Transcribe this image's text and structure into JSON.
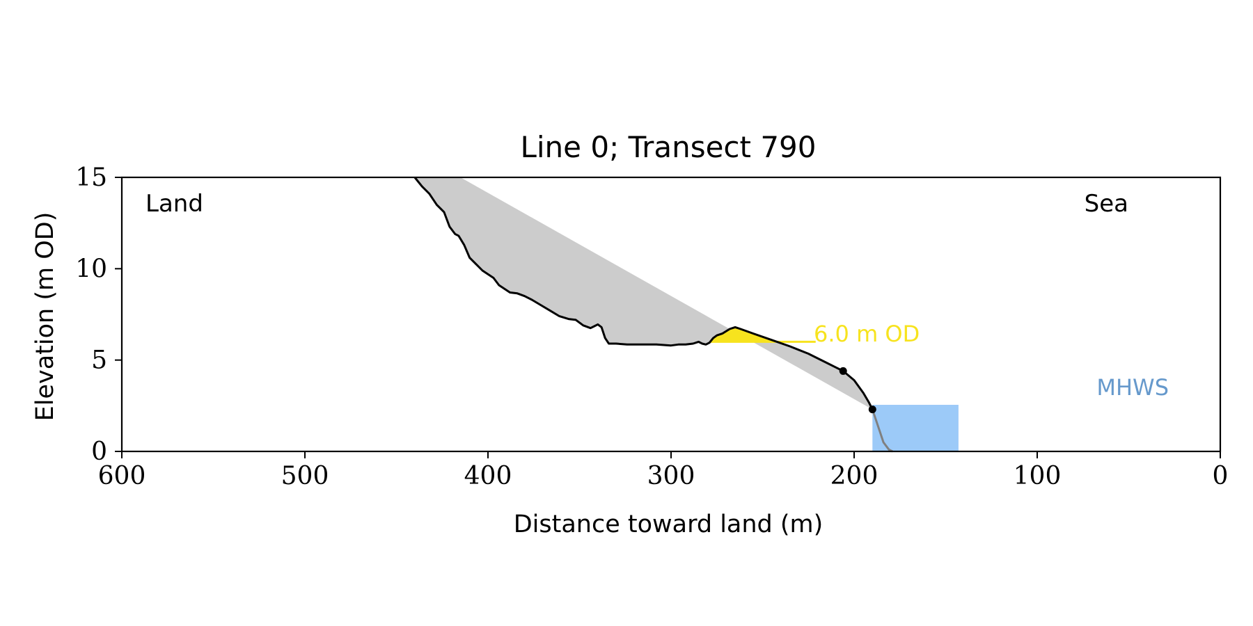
{
  "chart_data": {
    "type": "area",
    "title": "Line 0; Transect 790",
    "xlabel": "Distance toward land (m)",
    "ylabel": "Elevation (m OD)",
    "xlim": [
      600,
      0
    ],
    "ylim": [
      0,
      15
    ],
    "x_ticks": [
      600,
      500,
      400,
      300,
      200,
      100,
      0
    ],
    "y_ticks": [
      0,
      5,
      10,
      15
    ],
    "grid": false,
    "corner_labels": {
      "left": "Land",
      "right": "Sea"
    },
    "profile": {
      "x": [
        440,
        436,
        432,
        428,
        424,
        421,
        418,
        416,
        413,
        410,
        406,
        403,
        400,
        397,
        394,
        391,
        388,
        384,
        380,
        376,
        371,
        366,
        361,
        356,
        352,
        348,
        344,
        342,
        340,
        338,
        336,
        334,
        332,
        330,
        324,
        316,
        308,
        300,
        296,
        292,
        288,
        285,
        283,
        281,
        279,
        277,
        275,
        272,
        268,
        265,
        262,
        255,
        245,
        235,
        225,
        215,
        210,
        206,
        200,
        195,
        192,
        190
      ],
      "y": [
        15.0,
        14.5,
        14.1,
        13.5,
        13.1,
        12.3,
        11.9,
        11.8,
        11.3,
        10.6,
        10.2,
        9.9,
        9.7,
        9.5,
        9.1,
        8.9,
        8.7,
        8.65,
        8.5,
        8.3,
        8.0,
        7.7,
        7.4,
        7.25,
        7.2,
        6.9,
        6.75,
        6.85,
        6.95,
        6.8,
        6.2,
        5.9,
        5.9,
        5.9,
        5.85,
        5.85,
        5.85,
        5.8,
        5.85,
        5.85,
        5.9,
        6.0,
        5.9,
        5.85,
        5.95,
        6.2,
        6.35,
        6.45,
        6.7,
        6.8,
        6.7,
        6.45,
        6.1,
        5.75,
        5.35,
        4.85,
        4.6,
        4.4,
        3.9,
        3.2,
        2.7,
        2.3
      ]
    },
    "cliff_top": {
      "x": 206,
      "y": 4.4
    },
    "cliff_toe": {
      "x": 190,
      "y": 2.3
    },
    "foreshore": {
      "x": [
        190,
        187,
        184,
        181,
        179
      ],
      "y": [
        2.3,
        1.4,
        0.5,
        0.1,
        0.0
      ]
    },
    "projection_line": {
      "x": [
        415,
        190
      ],
      "y": [
        15.0,
        2.3
      ]
    },
    "mhws": {
      "label": "MHWS",
      "elevation": 2.55,
      "x_range": [
        143,
        190
      ],
      "color": "#9ccaf8",
      "label_color": "#6699cc"
    },
    "od_level": {
      "label": "6.0 m OD",
      "elevation": 6.0,
      "x_range": [
        221,
        279
      ],
      "color": "#f7e31e"
    },
    "colors": {
      "area": "#cccccc",
      "profile": "#000000",
      "foreshore": "#808080"
    }
  }
}
